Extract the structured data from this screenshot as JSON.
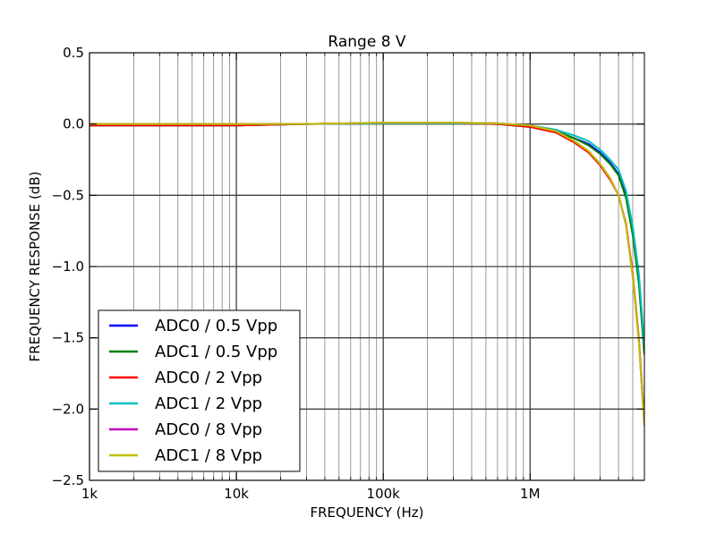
{
  "chart_data": {
    "type": "line",
    "title": "Range 8 V",
    "xlabel": "FREQUENCY (Hz)",
    "ylabel": "FREQUENCY RESPONSE (dB)",
    "xscale": "log",
    "xlim": [
      1000,
      6000000
    ],
    "ylim": [
      -2.5,
      0.5
    ],
    "x_ticks": [
      {
        "value": 1000,
        "label": "1k"
      },
      {
        "value": 10000,
        "label": "10k"
      },
      {
        "value": 100000,
        "label": "100k"
      },
      {
        "value": 1000000,
        "label": "1M"
      }
    ],
    "y_ticks": [
      {
        "value": 0.5,
        "label": "0.5"
      },
      {
        "value": 0.0,
        "label": "0.0"
      },
      {
        "value": -0.5,
        "label": "−0.5"
      },
      {
        "value": -1.0,
        "label": "−1.0"
      },
      {
        "value": -1.5,
        "label": "−1.5"
      },
      {
        "value": -2.0,
        "label": "−2.0"
      },
      {
        "value": -2.5,
        "label": "−2.5"
      }
    ],
    "grid": true,
    "legend_position": "lower-left",
    "series": [
      {
        "name": "ADC0 / 0.5 Vpp",
        "color": "#0000ff",
        "x": [
          1000,
          10000,
          30000,
          100000,
          300000,
          600000,
          1000000,
          1500000,
          2000000,
          2500000,
          3000000,
          3500000,
          4000000,
          4500000,
          5000000,
          5500000,
          6000000
        ],
        "y": [
          -0.01,
          -0.01,
          0.0,
          0.005,
          0.005,
          0.0,
          -0.02,
          -0.05,
          -0.1,
          -0.14,
          -0.2,
          -0.27,
          -0.35,
          -0.5,
          -0.75,
          -1.1,
          -1.6
        ]
      },
      {
        "name": "ADC1 / 0.5 Vpp",
        "color": "#008000",
        "x": [
          1000,
          10000,
          30000,
          100000,
          300000,
          600000,
          1000000,
          1500000,
          2000000,
          2500000,
          3000000,
          3500000,
          4000000,
          4500000,
          5000000,
          5500000,
          6000000
        ],
        "y": [
          -0.01,
          -0.01,
          0.0,
          0.005,
          0.005,
          0.0,
          -0.02,
          -0.05,
          -0.1,
          -0.15,
          -0.21,
          -0.28,
          -0.36,
          -0.52,
          -0.78,
          -1.12,
          -1.62
        ]
      },
      {
        "name": "ADC0 / 2 Vpp",
        "color": "#ff0000",
        "x": [
          1000,
          10000,
          30000,
          100000,
          300000,
          600000,
          1000000,
          1500000,
          2000000,
          2500000,
          3000000,
          3500000,
          4000000,
          4500000,
          5000000,
          5500000,
          6000000
        ],
        "y": [
          -0.01,
          -0.01,
          0.0,
          0.005,
          0.005,
          0.0,
          -0.02,
          -0.06,
          -0.13,
          -0.2,
          -0.29,
          -0.39,
          -0.5,
          -0.7,
          -1.05,
          -1.5,
          -2.1
        ]
      },
      {
        "name": "ADC1 / 2 Vpp",
        "color": "#00bfbf",
        "x": [
          1000,
          10000,
          30000,
          100000,
          300000,
          600000,
          1000000,
          1500000,
          2000000,
          2500000,
          3000000,
          3500000,
          4000000,
          4500000,
          5000000,
          5500000,
          6000000
        ],
        "y": [
          0.0,
          0.0,
          0.0,
          0.005,
          0.005,
          0.005,
          -0.01,
          -0.04,
          -0.08,
          -0.12,
          -0.18,
          -0.25,
          -0.32,
          -0.47,
          -0.72,
          -1.05,
          -1.55
        ]
      },
      {
        "name": "ADC0 / 8 Vpp",
        "color": "#bf00bf",
        "x": [
          1000,
          10000,
          30000,
          100000,
          300000,
          600000,
          1000000,
          1500000,
          2000000,
          2500000,
          3000000,
          3500000,
          4000000,
          4500000,
          5000000,
          5500000,
          6000000
        ],
        "y": [
          0.0,
          0.0,
          0.0,
          0.01,
          0.01,
          0.005,
          -0.01,
          -0.05,
          -0.12,
          -0.19,
          -0.28,
          -0.38,
          -0.5,
          -0.71,
          -1.07,
          -1.52,
          -2.12
        ]
      },
      {
        "name": "ADC1 / 8 Vpp",
        "color": "#bfbf00",
        "x": [
          1000,
          10000,
          30000,
          100000,
          300000,
          600000,
          1000000,
          1500000,
          2000000,
          2500000,
          3000000,
          3500000,
          4000000,
          4500000,
          5000000,
          5500000,
          6000000
        ],
        "y": [
          0.0,
          0.0,
          0.0,
          0.01,
          0.01,
          0.005,
          -0.01,
          -0.05,
          -0.12,
          -0.19,
          -0.28,
          -0.38,
          -0.5,
          -0.71,
          -1.07,
          -1.52,
          -2.12
        ]
      }
    ]
  }
}
